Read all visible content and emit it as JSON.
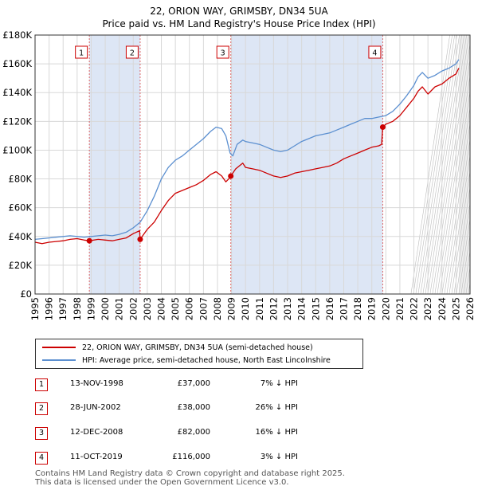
{
  "title_line1": "22, ORION WAY, GRIMSBY, DN34 5UA",
  "title_line2": "Price paid vs. HM Land Registry's House Price Index (HPI)",
  "chart_data": {
    "type": "line",
    "title": "22, ORION WAY, GRIMSBY, DN34 5UA — Price paid vs. HM Land Registry's House Price Index (HPI)",
    "xlim": [
      1995,
      2026
    ],
    "ylim": [
      0,
      180000
    ],
    "y_ticks": [
      0,
      20000,
      40000,
      60000,
      80000,
      100000,
      120000,
      140000,
      160000,
      180000
    ],
    "y_tick_labels": [
      "£0",
      "£20K",
      "£40K",
      "£60K",
      "£80K",
      "£100K",
      "£120K",
      "£140K",
      "£160K",
      "£180K"
    ],
    "x_ticks": [
      1995,
      1996,
      1997,
      1998,
      1999,
      2000,
      2001,
      2002,
      2003,
      2004,
      2005,
      2006,
      2007,
      2008,
      2009,
      2010,
      2011,
      2012,
      2013,
      2014,
      2015,
      2016,
      2017,
      2018,
      2019,
      2020,
      2021,
      2022,
      2023,
      2024,
      2025,
      2026
    ],
    "x_tick_labels": [
      "1995",
      "1996",
      "1997",
      "1998",
      "1999",
      "2000",
      "2001",
      "2002",
      "2003",
      "2004",
      "2005",
      "2006",
      "2007",
      "2008",
      "2009",
      "2010",
      "2011",
      "2012",
      "2013",
      "2014",
      "2015",
      "2016",
      "2017",
      "2018",
      "2019",
      "2020",
      "2021",
      "2022",
      "2023",
      "2024",
      "2025",
      "2026"
    ],
    "grid": true,
    "forecast_from": 2025.2,
    "shaded_periods": [
      [
        1998.87,
        2002.49
      ],
      [
        2008.95,
        2019.78
      ]
    ],
    "series": [
      {
        "name": "22, ORION WAY, GRIMSBY, DN34 5UA (semi-detached house)",
        "color": "#cc0000",
        "x": [
          1995,
          1995.5,
          1996,
          1996.5,
          1997,
          1997.5,
          1998,
          1998.5,
          1998.87,
          1999.5,
          2000,
          2000.5,
          2001,
          2001.5,
          2002,
          2002.45,
          2002.49,
          2003,
          2003.5,
          2004,
          2004.5,
          2005,
          2005.5,
          2006,
          2006.5,
          2007,
          2007.5,
          2007.9,
          2008.3,
          2008.6,
          2008.8,
          2008.95,
          2009.3,
          2009.8,
          2010,
          2010.5,
          2011,
          2011.5,
          2012,
          2012.5,
          2013,
          2013.5,
          2014,
          2014.5,
          2015,
          2015.5,
          2016,
          2016.5,
          2017,
          2017.5,
          2018,
          2018.5,
          2019,
          2019.5,
          2019.7,
          2019.78,
          2020,
          2020.5,
          2021,
          2021.5,
          2022,
          2022.3,
          2022.6,
          2023,
          2023.5,
          2024,
          2024.5,
          2025,
          2025.2
        ],
        "values": [
          36000,
          35000,
          36000,
          36500,
          37000,
          38000,
          38500,
          37500,
          37000,
          38000,
          37500,
          37000,
          38000,
          39000,
          42000,
          44000,
          38000,
          45000,
          50000,
          58000,
          65000,
          70000,
          72000,
          74000,
          76000,
          79000,
          83000,
          85000,
          82000,
          78000,
          80000,
          82000,
          87000,
          91000,
          88000,
          87000,
          86000,
          84000,
          82000,
          81000,
          82000,
          84000,
          85000,
          86000,
          87000,
          88000,
          89000,
          91000,
          94000,
          96000,
          98000,
          100000,
          102000,
          103000,
          104000,
          116000,
          118000,
          120000,
          124000,
          130000,
          136000,
          141000,
          144000,
          139000,
          144000,
          146000,
          150000,
          153000,
          157000
        ]
      },
      {
        "name": "HPI: Average price, semi-detached house, North East Lincolnshire",
        "color": "#5b8fd0",
        "x": [
          1995,
          1995.5,
          1996,
          1996.5,
          1997,
          1997.5,
          1998,
          1998.5,
          1999,
          1999.5,
          2000,
          2000.5,
          2001,
          2001.5,
          2002,
          2002.5,
          2003,
          2003.5,
          2004,
          2004.5,
          2005,
          2005.5,
          2006,
          2006.5,
          2007,
          2007.5,
          2007.9,
          2008.3,
          2008.6,
          2008.9,
          2009.1,
          2009.4,
          2009.8,
          2010,
          2010.5,
          2011,
          2011.5,
          2012,
          2012.5,
          2013,
          2013.5,
          2014,
          2014.5,
          2015,
          2015.5,
          2016,
          2016.5,
          2017,
          2017.5,
          2018,
          2018.5,
          2019,
          2019.5,
          2020,
          2020.5,
          2021,
          2021.5,
          2022,
          2022.3,
          2022.6,
          2023,
          2023.5,
          2024,
          2024.5,
          2025,
          2025.2
        ],
        "values": [
          38000,
          38500,
          39000,
          39500,
          40000,
          40500,
          40000,
          39500,
          40000,
          40500,
          41000,
          40500,
          41500,
          43000,
          46000,
          50000,
          58000,
          68000,
          80000,
          88000,
          93000,
          96000,
          100000,
          104000,
          108000,
          113000,
          116000,
          115000,
          110000,
          98000,
          96000,
          104000,
          107000,
          106000,
          105000,
          104000,
          102000,
          100000,
          99000,
          100000,
          103000,
          106000,
          108000,
          110000,
          111000,
          112000,
          114000,
          116000,
          118000,
          120000,
          122000,
          122000,
          123000,
          124000,
          127000,
          132000,
          138000,
          145000,
          151000,
          154000,
          150000,
          152000,
          155000,
          157000,
          160000,
          163000
        ]
      }
    ],
    "markers": [
      {
        "label": "1",
        "x": 1998.87,
        "value": 37000
      },
      {
        "label": "2",
        "x": 2002.49,
        "value": 38000
      },
      {
        "label": "3",
        "x": 2008.95,
        "value": 82000
      },
      {
        "label": "4",
        "x": 2019.78,
        "value": 116000
      }
    ]
  },
  "legend": {
    "property_label": "22, ORION WAY, GRIMSBY, DN34 5UA (semi-detached house)",
    "hpi_label": "HPI: Average price, semi-detached house, North East Lincolnshire"
  },
  "sales": [
    {
      "num": "1",
      "date": "13-NOV-1998",
      "price": "£37,000",
      "hpi": "7% ↓ HPI"
    },
    {
      "num": "2",
      "date": "28-JUN-2002",
      "price": "£38,000",
      "hpi": "26% ↓ HPI"
    },
    {
      "num": "3",
      "date": "12-DEC-2008",
      "price": "£82,000",
      "hpi": "16% ↓ HPI"
    },
    {
      "num": "4",
      "date": "11-OCT-2019",
      "price": "£116,000",
      "hpi": "3% ↓ HPI"
    }
  ],
  "footer_line1": "Contains HM Land Registry data © Crown copyright and database right 2025.",
  "footer_line2": "This data is licensed under the Open Government Licence v3.0.",
  "colors": {
    "property": "#cc0000",
    "hpi": "#5b8fd0",
    "shade": "#dde6f5"
  }
}
